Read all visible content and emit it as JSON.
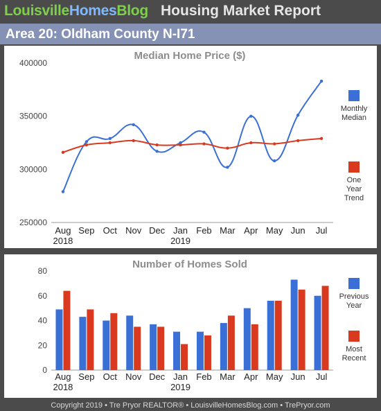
{
  "header": {
    "brand_parts": [
      "Louisville",
      "Homes",
      "Blog"
    ],
    "title": "Housing Market Report"
  },
  "area": {
    "title": "Area 20: Oldham County N-I71"
  },
  "footer": {
    "text": "Copyright 2019 • Tre Pryor REALTOR® • LouisvilleHomesBlog.com • TrePryor.com"
  },
  "colors": {
    "blue": "#3a6fd6",
    "red": "#d93a1f",
    "header_bg": "#4b4b4b",
    "area_bg": "#8591b5"
  },
  "chart_data": [
    {
      "type": "line",
      "title": "Median Home Price ($)",
      "categories": [
        "Aug",
        "Sep",
        "Oct",
        "Nov",
        "Dec",
        "Jan",
        "Feb",
        "Mar",
        "Apr",
        "May",
        "Jun",
        "Jul"
      ],
      "year_labels": [
        "2018",
        "",
        "",
        "",
        "",
        "2019",
        "",
        "",
        "",
        "",
        "",
        ""
      ],
      "y_ticks": [
        250000,
        300000,
        350000,
        400000
      ],
      "ylim": [
        250000,
        400000
      ],
      "series": [
        {
          "name": "Monthly Median",
          "color": "#3a6fd6",
          "smooth": true,
          "values": [
            279000,
            326000,
            329000,
            342000,
            317000,
            325000,
            335000,
            302000,
            350000,
            308000,
            351000,
            383000
          ]
        },
        {
          "name": "One Year Trend",
          "color": "#d93a1f",
          "smooth": true,
          "values": [
            316000,
            323000,
            325000,
            327000,
            323000,
            323000,
            324000,
            320000,
            325000,
            324000,
            327000,
            329000
          ]
        }
      ],
      "legend_placement": "right"
    },
    {
      "type": "bar",
      "title": "Number of Homes Sold",
      "categories": [
        "Aug",
        "Sep",
        "Oct",
        "Nov",
        "Dec",
        "Jan",
        "Feb",
        "Mar",
        "Apr",
        "May",
        "Jun",
        "Jul"
      ],
      "year_labels": [
        "2018",
        "",
        "",
        "",
        "",
        "2019",
        "",
        "",
        "",
        "",
        "",
        ""
      ],
      "y_ticks": [
        0,
        20,
        40,
        60,
        80
      ],
      "ylim": [
        0,
        80
      ],
      "series": [
        {
          "name": "Previous Year",
          "color": "#3a6fd6",
          "values": [
            49,
            43,
            40,
            44,
            37,
            31,
            31,
            38,
            50,
            56,
            73,
            60
          ]
        },
        {
          "name": "Most Recent",
          "color": "#d93a1f",
          "values": [
            64,
            49,
            46,
            35,
            35,
            21,
            28,
            44,
            37,
            56,
            65,
            68
          ]
        }
      ],
      "legend_placement": "right"
    }
  ]
}
